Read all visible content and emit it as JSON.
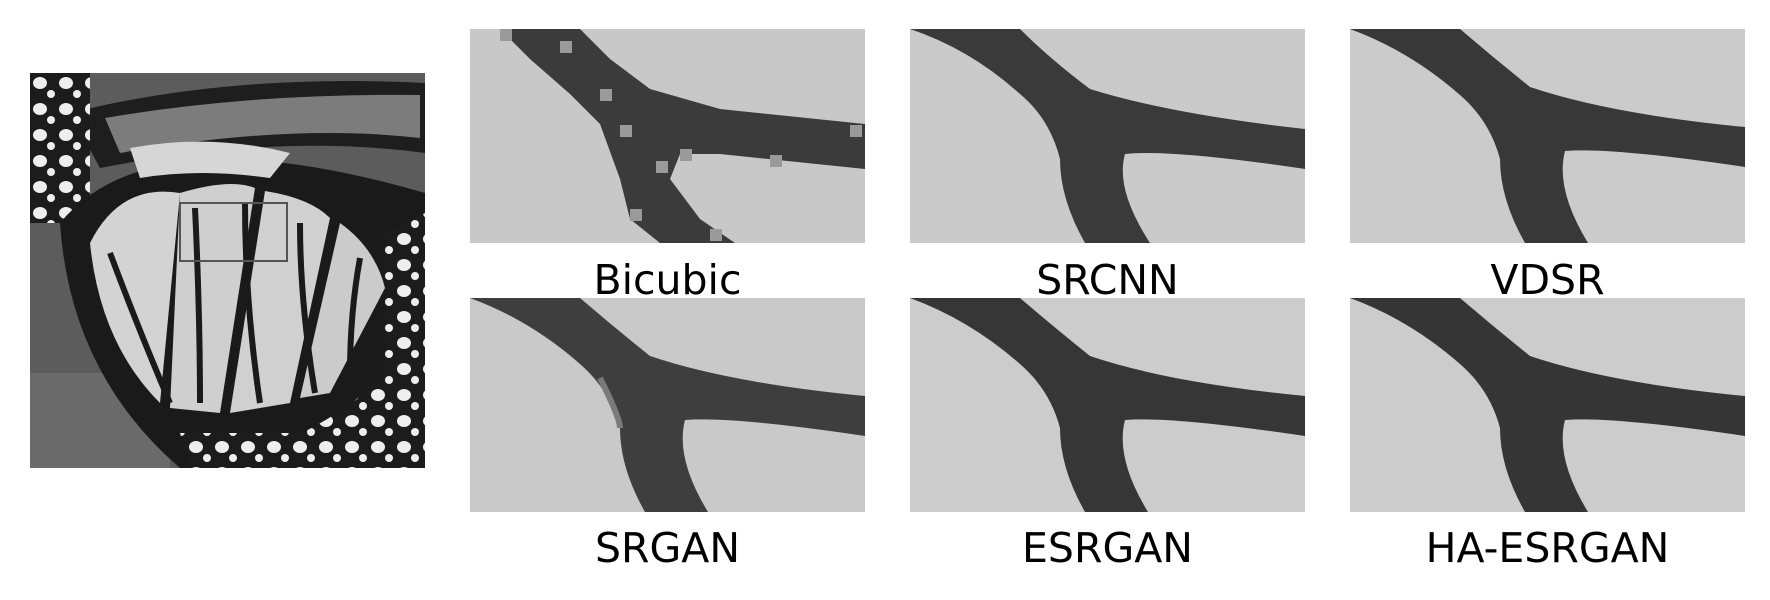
{
  "figure": {
    "reference_image": {
      "subject": "butterfly wing (grayscale) with rectangular region-of-interest box"
    },
    "crops": [
      {
        "label": "Bicubic",
        "style": "pixelated"
      },
      {
        "label": "SRCNN",
        "style": "smooth"
      },
      {
        "label": "VDSR",
        "style": "smooth"
      },
      {
        "label": "SRGAN",
        "style": "blurred"
      },
      {
        "label": "ESRGAN",
        "style": "sharp"
      },
      {
        "label": "HA-ESRGAN",
        "style": "sharp"
      }
    ]
  },
  "colors": {
    "background": "#ffffff",
    "crop_light": "#c9c9c9",
    "crop_vein": "#3d3d3d",
    "roi_box": "#555555"
  }
}
